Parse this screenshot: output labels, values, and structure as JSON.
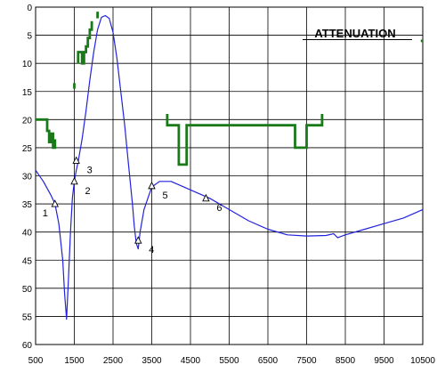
{
  "chart_data": {
    "type": "line",
    "title": "ATTENUATION",
    "xlabel": "",
    "ylabel": "",
    "xlim": [
      500,
      10500
    ],
    "ylim": [
      0,
      60
    ],
    "y_inverted": true,
    "x_ticks": [
      500,
      1500,
      2500,
      3500,
      4500,
      5500,
      6500,
      7500,
      8500,
      9500,
      10500
    ],
    "x_tick_labels": [
      "500",
      "1500",
      "2500",
      "3500",
      "4500",
      "5500",
      "6500",
      "7500",
      "8500",
      "9500",
      "10500"
    ],
    "y_ticks": [
      0,
      5,
      10,
      15,
      20,
      25,
      30,
      35,
      40,
      45,
      50,
      55,
      60
    ],
    "y_tick_labels": [
      "0",
      "5",
      "10",
      "15",
      "20",
      "25",
      "30",
      "35",
      "40",
      "45",
      "50",
      "55",
      "60"
    ],
    "grid": true,
    "colors": {
      "curve": "#2222dd",
      "mask": "#1a7a1a",
      "grid": "#000000"
    },
    "curve": {
      "x": [
        500,
        700,
        900,
        1000,
        1100,
        1200,
        1250,
        1300,
        1350,
        1400,
        1450,
        1500,
        1550,
        1600,
        1700,
        1800,
        1900,
        2000,
        2100,
        2200,
        2300,
        2400,
        2500,
        2600,
        2700,
        2800,
        2900,
        3000,
        3050,
        3100,
        3150,
        3200,
        3300,
        3400,
        3500,
        3700,
        4000,
        4500,
        5000,
        5500,
        6000,
        6500,
        7000,
        7500,
        8000,
        8200,
        8300,
        8500,
        9000,
        9500,
        10000,
        10500
      ],
      "y": [
        29,
        31,
        33.5,
        35,
        38.5,
        45,
        51,
        55.5,
        48,
        40,
        34,
        31,
        29,
        27.5,
        23.5,
        18.5,
        13,
        8,
        4,
        1.8,
        1.5,
        2,
        4.5,
        9,
        15,
        21,
        28,
        35,
        39,
        42,
        43,
        40,
        36,
        34,
        32,
        31,
        31,
        32.5,
        34,
        36,
        38,
        39.5,
        40.5,
        40.7,
        40.6,
        40.3,
        41,
        40.5,
        39.5,
        38.5,
        37.5,
        36
      ]
    },
    "markers": [
      {
        "label": "1",
        "x": 1000,
        "y": 35
      },
      {
        "label": "2",
        "x": 1500,
        "y": 31
      },
      {
        "label": "3",
        "x": 1550,
        "y": 27.3
      },
      {
        "label": "4",
        "x": 3150,
        "y": 41.5
      },
      {
        "label": "5",
        "x": 3500,
        "y": 31.8
      },
      {
        "label": "6",
        "x": 4900,
        "y": 34
      }
    ],
    "mask_segments": [
      [
        [
          500,
          20
        ],
        [
          800,
          20
        ],
        [
          800,
          22
        ],
        [
          850,
          22
        ],
        [
          850,
          24
        ],
        [
          900,
          24
        ],
        [
          900,
          22.5
        ],
        [
          950,
          22.5
        ],
        [
          950,
          25
        ],
        [
          1000,
          25
        ],
        [
          1000,
          23.5
        ]
      ],
      [
        [
          1500,
          13.5
        ],
        [
          1500,
          14.5
        ]
      ],
      [
        [
          1600,
          10
        ],
        [
          1600,
          8
        ],
        [
          1700,
          8
        ],
        [
          1700,
          10
        ],
        [
          1750,
          10
        ],
        [
          1750,
          8
        ],
        [
          1800,
          8
        ],
        [
          1800,
          7
        ],
        [
          1850,
          7
        ],
        [
          1850,
          5.5
        ],
        [
          1900,
          5.5
        ],
        [
          1900,
          4
        ],
        [
          1950,
          4
        ],
        [
          1950,
          2.5
        ]
      ],
      [
        [
          2100,
          0.8
        ],
        [
          2100,
          2
        ]
      ],
      [
        [
          3900,
          19
        ],
        [
          3900,
          21
        ],
        [
          4200,
          21
        ],
        [
          4200,
          28
        ],
        [
          4400,
          28
        ],
        [
          4400,
          21
        ],
        [
          7200,
          21
        ],
        [
          7200,
          25
        ],
        [
          7500,
          25
        ],
        [
          7500,
          21
        ],
        [
          7900,
          21
        ],
        [
          7900,
          19
        ]
      ],
      [
        [
          10450,
          6
        ],
        [
          10500,
          6
        ]
      ]
    ]
  }
}
